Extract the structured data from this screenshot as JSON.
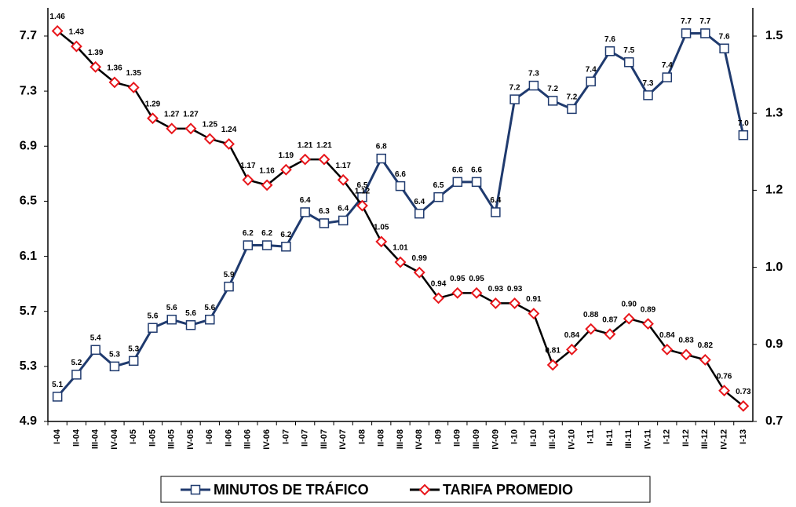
{
  "chart_data": {
    "type": "line",
    "categories": [
      "I-04",
      "II-04",
      "III-04",
      "IV-04",
      "I-05",
      "II-05",
      "III-05",
      "IV-05",
      "I-06",
      "II-06",
      "III-06",
      "IV-06",
      "I-07",
      "II-07",
      "III-07",
      "IV-07",
      "I-08",
      "II-08",
      "III-08",
      "IV-08",
      "I-09",
      "II-09",
      "III-09",
      "IV-09",
      "I-10",
      "II-10",
      "III-10",
      "IV-10",
      "I-11",
      "II-11",
      "III-11",
      "IV-11",
      "I-12",
      "II-12",
      "III-12",
      "IV-12",
      "I-13"
    ],
    "series": [
      {
        "name": "MINUTOS DE TRÁFICO",
        "color": "#1f3a6e",
        "marker": "square",
        "values": [
          5.08,
          5.24,
          5.42,
          5.3,
          5.34,
          5.58,
          5.64,
          5.6,
          5.64,
          5.88,
          6.18,
          6.18,
          6.17,
          6.42,
          6.34,
          6.36,
          6.53,
          6.81,
          6.61,
          6.41,
          6.53,
          6.64,
          6.64,
          6.42,
          7.24,
          7.34,
          7.23,
          7.17,
          7.37,
          7.59,
          7.51,
          7.27,
          7.4,
          7.72,
          7.72,
          7.61,
          6.98
        ],
        "value_labels": [
          "5.1",
          "5.2",
          "5.4",
          "5.3",
          "5.3",
          "5.6",
          "5.6",
          "5.6",
          "5.6",
          "5.9",
          "6.2",
          "6.2",
          "6.2",
          "6.4",
          "6.3",
          "6.4",
          "6.5",
          "6.8",
          "6.6",
          "6.4",
          "6.5",
          "6.6",
          "6.6",
          "6.4",
          "7.2",
          "7.3",
          "7.2",
          "7.2",
          "7.4",
          "7.6",
          "7.5",
          "7.3",
          "7.4",
          "7.7",
          "7.7",
          "7.6",
          "7.0"
        ]
      },
      {
        "name": "TARIFA PROMEDIO",
        "color": "#000000",
        "marker_color": "#e8161b",
        "marker": "diamond",
        "axis": "y2",
        "values": [
          1.46,
          1.43,
          1.39,
          1.36,
          1.35,
          1.29,
          1.27,
          1.27,
          1.25,
          1.24,
          1.17,
          1.16,
          1.19,
          1.21,
          1.21,
          1.17,
          1.12,
          1.05,
          1.01,
          0.99,
          0.94,
          0.95,
          0.95,
          0.93,
          0.93,
          0.91,
          0.81,
          0.84,
          0.88,
          0.87,
          0.9,
          0.89,
          0.84,
          0.83,
          0.82,
          0.76,
          0.73
        ],
        "value_labels": [
          "1.46",
          "1.43",
          "1.39",
          "1.36",
          "1.35",
          "1.29",
          "1.27",
          "1.27",
          "1.25",
          "1.24",
          "1.17",
          "1.16",
          "1.19",
          "1.21",
          "1.21",
          "1.17",
          "1.12",
          "1.05",
          "1.01",
          "0.99",
          "0.94",
          "0.95",
          "0.95",
          "0.93",
          "0.93",
          "0.91",
          "0.81",
          "0.84",
          "0.88",
          "0.87",
          "0.90",
          "0.89",
          "0.84",
          "0.83",
          "0.82",
          "0.76",
          "0.73"
        ]
      }
    ],
    "ylim": [
      4.9,
      7.905
    ],
    "yticks": [
      4.9,
      5.3,
      5.7,
      6.1,
      6.5,
      6.9,
      7.3,
      7.7
    ],
    "y2lim": [
      0.7,
      1.505
    ],
    "y2ticks": [
      {
        "value": 0.7,
        "label": "0.7"
      },
      {
        "value": 0.85,
        "label": "0.9"
      },
      {
        "value": 1.0,
        "label": "1.0"
      },
      {
        "value": 1.15,
        "label": "1.2"
      },
      {
        "value": 1.3,
        "label": "1.3"
      },
      {
        "value": 1.45,
        "label": "1.5"
      }
    ],
    "grid": false,
    "legend": "bottom"
  }
}
